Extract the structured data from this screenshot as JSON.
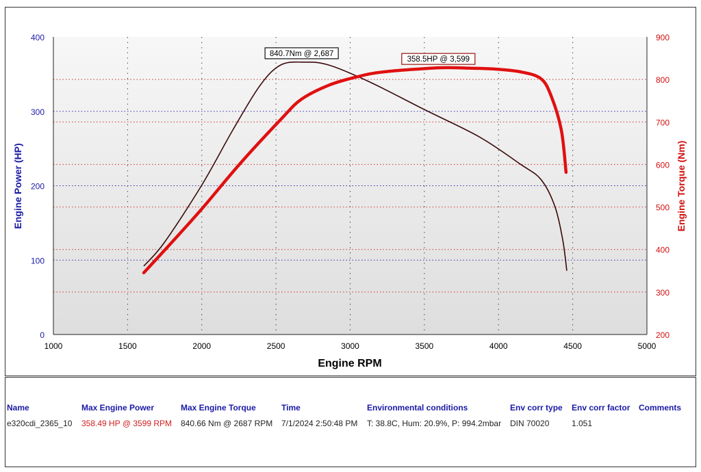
{
  "chart_data": {
    "type": "line",
    "xlabel": "Engine RPM",
    "ylabel_left": "Engine Power (HP)",
    "ylabel_right": "Engine Torque (Nm)",
    "xlim": [
      1000,
      5000
    ],
    "ylim_left": [
      0,
      400
    ],
    "ylim_right": [
      200,
      900
    ],
    "x_ticks": [
      1000,
      1500,
      2000,
      2500,
      3000,
      3500,
      4000,
      4500,
      5000
    ],
    "y_ticks_left": [
      0,
      100,
      200,
      300,
      400
    ],
    "y_ticks_right": [
      200,
      300,
      400,
      500,
      600,
      700,
      800,
      900
    ],
    "grid": true,
    "colors": {
      "power": "#e01010",
      "torque": "#3a0a0a",
      "left_axis": "#1a1aa6",
      "right_axis": "#d01010"
    },
    "series": [
      {
        "name": "Engine Power (HP)",
        "axis": "left",
        "x": [
          1609,
          1794,
          2001,
          2255,
          2532,
          2670,
          2855,
          3039,
          3224,
          3593,
          3800,
          3962,
          4150,
          4285,
          4354,
          4423,
          4455
        ],
        "y": [
          83,
          123,
          169,
          229,
          289,
          316,
          335,
          346,
          353,
          358.5,
          358,
          357,
          353,
          344,
          321,
          275,
          218
        ]
      },
      {
        "name": "Engine Torque (Nm)",
        "axis": "right",
        "x": [
          1609,
          1747,
          2001,
          2209,
          2393,
          2532,
          2687,
          2855,
          3132,
          3501,
          3870,
          4146,
          4285,
          4377,
          4432,
          4460
        ],
        "y": [
          361,
          416,
          552,
          681,
          786,
          834,
          840.7,
          834,
          794,
          729,
          665,
          601,
          565,
          504,
          424,
          350
        ]
      }
    ],
    "annotations": [
      {
        "text": "840.7Nm @ 2,687",
        "series": "torque",
        "x": 2687,
        "y": 840.7
      },
      {
        "text": "358.5HP @ 3,599",
        "series": "power",
        "x": 3599,
        "y": 358.5
      }
    ]
  },
  "table": {
    "headers": [
      "Name",
      "Max Engine Power",
      "Max Engine Torque",
      "Time",
      "Environmental conditions",
      "Env corr type",
      "Env corr factor",
      "Comments"
    ],
    "row": [
      "e320cdi_2365_10",
      "358.49 HP @ 3599 RPM",
      "840.66 Nm @ 2687 RPM",
      "7/1/2024 2:50:48 PM",
      "T: 38.8C, Hum: 20.9%, P: 994.2mbar",
      "DIN 70020",
      "1.051",
      ""
    ]
  }
}
